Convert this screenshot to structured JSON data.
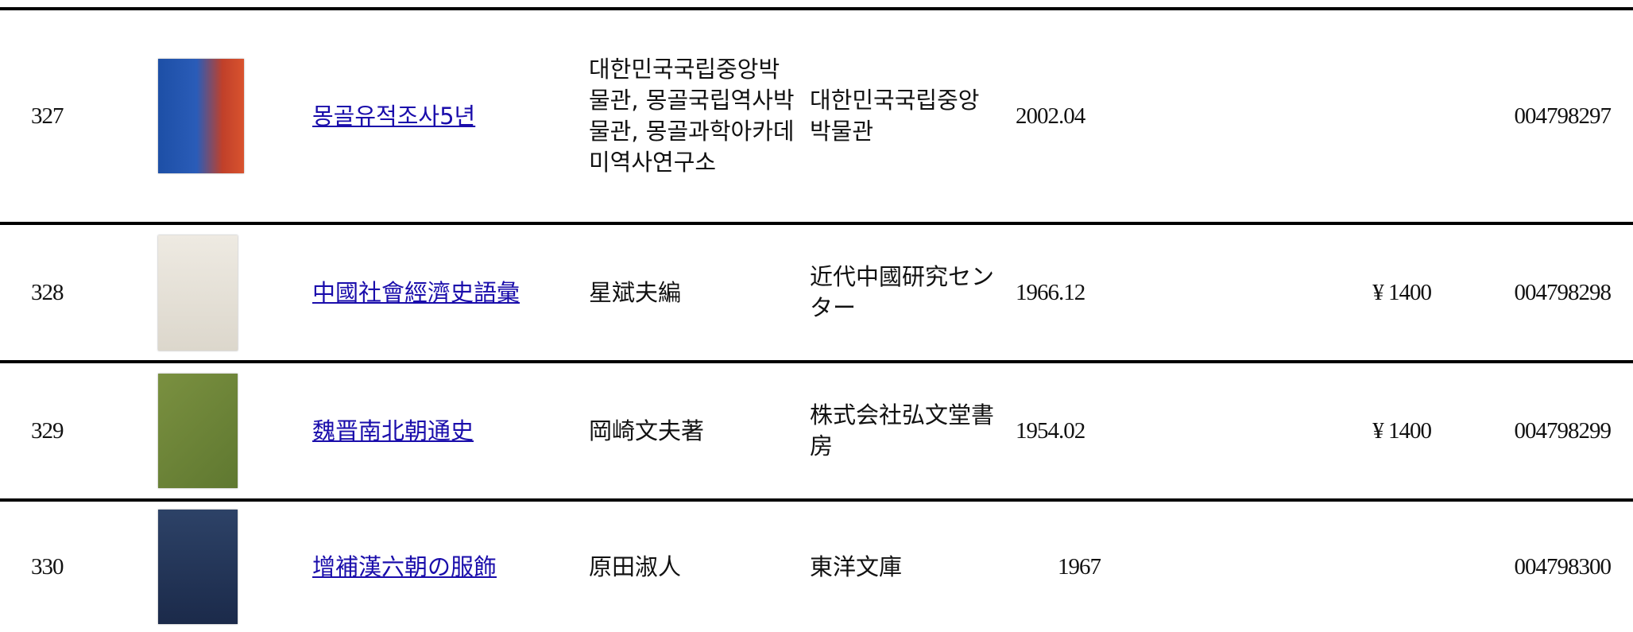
{
  "table": {
    "rows": [
      {
        "number": "327",
        "title": "몽골유적조사5년",
        "author": "대한민국국립중앙박물관, 몽골국립역사박물관, 몽골과학아카데미역사연구소",
        "publisher": "대한민국국립중앙박물관",
        "date": "2002.04",
        "id": "004798297"
      },
      {
        "number": "328",
        "title": "中國社會經濟史語彙",
        "author": "星斌夫編",
        "publisher": "近代中國研究センター",
        "date": "1966.12",
        "price": "¥ 1400",
        "id": "004798298"
      },
      {
        "number": "329",
        "title": "魏晋南北朝通史",
        "author": "岡崎文夫著",
        "publisher": "株式会社弘文堂書房",
        "date": "1954.02",
        "price": "¥ 1400",
        "id": "004798299"
      },
      {
        "number": "330",
        "title": "增補漢六朝の服飾",
        "author": "原田淑人",
        "publisher": "東洋文庫",
        "date": "1967",
        "id": "004798300"
      }
    ]
  }
}
